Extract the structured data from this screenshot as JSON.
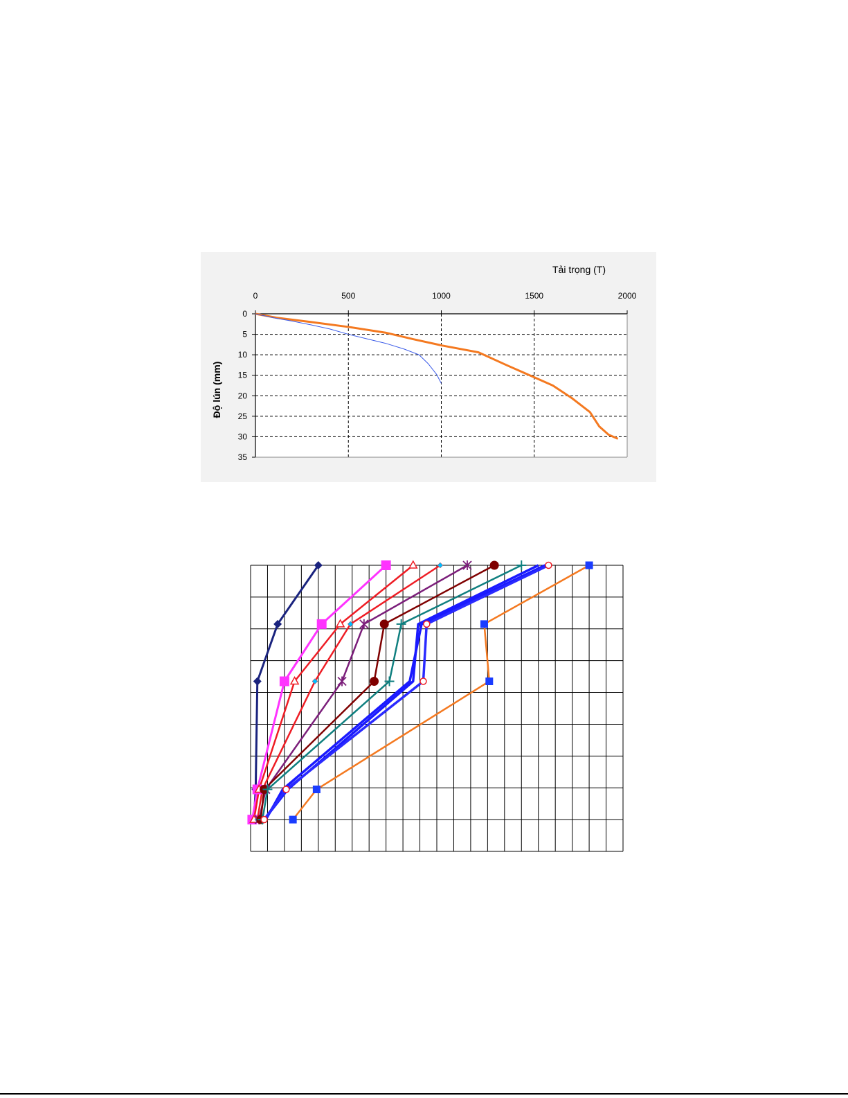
{
  "chart_data": [
    {
      "type": "line",
      "title": "",
      "xlabel": "Tải trọng (T)",
      "ylabel": "Độ lún (mm)",
      "xlim": [
        0,
        2000
      ],
      "ylim": [
        0,
        35
      ],
      "y_inverted": true,
      "x_axis_position": "top",
      "x_ticks": [
        "0",
        "500",
        "1000",
        "1500",
        "2000"
      ],
      "y_ticks": [
        "0",
        "5",
        "10",
        "15",
        "20",
        "25",
        "30",
        "35"
      ],
      "grid": "dashed",
      "legend": "none",
      "series": [
        {
          "color": "#f47920",
          "x": [
            0,
            120,
            300,
            500,
            700,
            850,
            1000,
            1200,
            1350,
            1500,
            1600,
            1700,
            1800,
            1850,
            1900,
            1950
          ],
          "y": [
            0,
            1,
            2,
            3.2,
            4.6,
            6.2,
            7.7,
            9.4,
            12.5,
            15.5,
            17.5,
            20.5,
            24,
            27.5,
            29.5,
            30.5
          ]
        },
        {
          "color": "#3a5ae8",
          "x": [
            0,
            100,
            200,
            300,
            400,
            500,
            600,
            700,
            800,
            880,
            930,
            975,
            1000
          ],
          "y": [
            0,
            1,
            1.8,
            2.7,
            3.7,
            5,
            6.1,
            7.2,
            8.6,
            10,
            12.2,
            14.8,
            17
          ]
        }
      ]
    },
    {
      "type": "line",
      "title": "",
      "xlabel": "",
      "ylabel": "",
      "xlim": [
        0,
        22
      ],
      "ylim": [
        0,
        9
      ],
      "y_inverted": true,
      "grid": "solid",
      "legend": "none",
      "series": [
        {
          "color": "#1a237e",
          "marker": "diamond",
          "x": [
            4.0,
            1.6,
            0.4,
            0.3,
            0.2
          ],
          "y": [
            0,
            1.85,
            3.65,
            7.05,
            8
          ]
        },
        {
          "color": "#ff33ff",
          "marker": "square",
          "x": [
            8.0,
            4.2,
            2.0,
            0.4,
            0.1
          ],
          "y": [
            0,
            1.85,
            3.65,
            7.05,
            8
          ]
        },
        {
          "color": "#ee1c24",
          "marker": "triangle",
          "x": [
            9.6,
            5.3,
            2.6,
            0.5,
            0.2
          ],
          "y": [
            0,
            1.85,
            3.65,
            7.05,
            8
          ]
        },
        {
          "color": "#ee1c24",
          "marker": "small-diamond",
          "x": [
            11.2,
            5.9,
            3.8,
            0.7,
            0.4
          ],
          "y": [
            0,
            1.85,
            3.65,
            7.05,
            8
          ]
        },
        {
          "color": "#7b1e7a",
          "marker": "star",
          "x": [
            12.8,
            6.7,
            5.4,
            0.9,
            0.5
          ],
          "y": [
            0,
            1.85,
            3.65,
            7.05,
            8
          ]
        },
        {
          "color": "#7f0000",
          "marker": "circle",
          "x": [
            14.4,
            7.9,
            7.3,
            0.8,
            0.6
          ],
          "y": [
            0,
            1.85,
            3.65,
            7.05,
            8
          ]
        },
        {
          "color": "#0f7f7f",
          "marker": "plus",
          "x": [
            16.0,
            8.9,
            8.2,
            1.0,
            0.7
          ],
          "y": [
            0,
            1.85,
            3.65,
            7.05,
            8
          ]
        },
        {
          "color": "#1a1aff",
          "marker": "none",
          "x": [
            17.0,
            9.9,
            9.6,
            2.2,
            0.8
          ],
          "y": [
            0,
            1.85,
            3.65,
            7.05,
            8
          ]
        },
        {
          "color": "#1a1aff",
          "marker": "none",
          "x": [
            17.4,
            10.1,
            9.4,
            1.9,
            0.9
          ],
          "y": [
            0,
            1.85,
            3.65,
            7.05,
            8
          ]
        },
        {
          "color": "#2a2aff",
          "marker": "open-circle",
          "x": [
            17.6,
            10.4,
            10.2,
            2.1,
            0.8
          ],
          "y": [
            0,
            1.85,
            3.65,
            7.05,
            8
          ]
        },
        {
          "color": "#f47920",
          "marker": "blue-square",
          "x": [
            20.0,
            13.8,
            14.1,
            3.9,
            2.5
          ],
          "y": [
            0,
            1.85,
            3.65,
            7.05,
            8
          ]
        }
      ]
    }
  ]
}
